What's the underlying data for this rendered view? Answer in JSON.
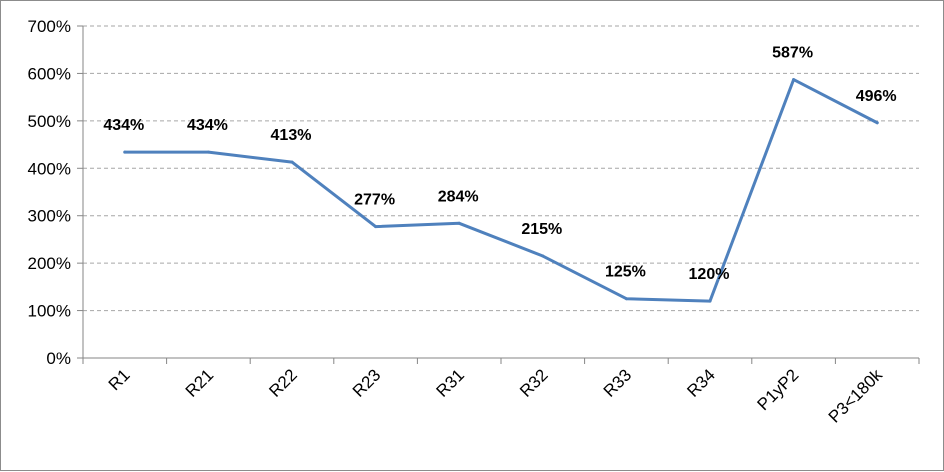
{
  "chart_data": {
    "type": "line",
    "title": "",
    "xlabel": "",
    "ylabel": "",
    "categories": [
      "R1",
      "R21",
      "R22",
      "R23",
      "R31",
      "R32",
      "R33",
      "R34",
      "P1yP2",
      "P3<180k"
    ],
    "series": [
      {
        "values": [
          434,
          434,
          413,
          277,
          284,
          215,
          125,
          120,
          587,
          496
        ],
        "labels": [
          "434%",
          "434%",
          "413%",
          "277%",
          "284%",
          "215%",
          "125%",
          "120%",
          "587%",
          "496%"
        ],
        "color": "#4f81bd"
      }
    ],
    "ylim": [
      0,
      700
    ],
    "yticks": [
      0,
      100,
      200,
      300,
      400,
      500,
      600,
      700
    ],
    "ytick_labels": [
      "0%",
      "100%",
      "200%",
      "300%",
      "400%",
      "500%",
      "600%",
      "700%"
    ],
    "y_unit": "%",
    "grid": "horizontal dashed",
    "legend": "none"
  },
  "colors": {
    "line": "#4f81bd",
    "gridline": "#a6a6a6",
    "axis": "#868686"
  }
}
